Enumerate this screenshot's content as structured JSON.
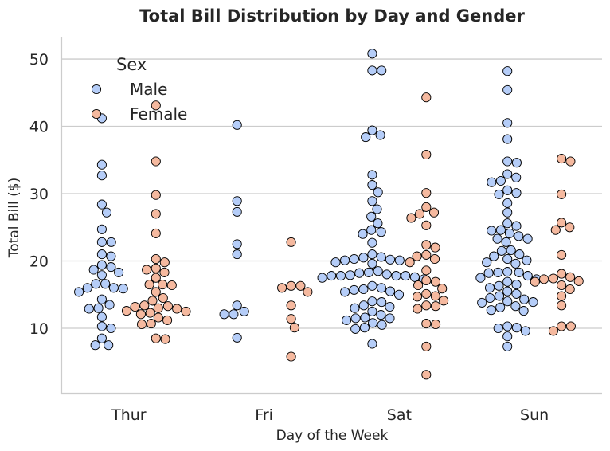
{
  "chart_data": {
    "type": "scatter",
    "subtype": "swarm",
    "title": "Total Bill Distribution by Day and Gender",
    "xlabel": "Day of the Week",
    "ylabel": "Total Bill ($)",
    "categories": [
      "Thur",
      "Fri",
      "Sat",
      "Sun"
    ],
    "yticks": [
      10,
      20,
      30,
      40,
      50
    ],
    "ylim": [
      0.3,
      53.2
    ],
    "grid": "horizontal",
    "legend": {
      "title": "Sex",
      "position": "top-left"
    },
    "series": [
      {
        "name": "Male",
        "color": "#b5cdf8",
        "values": {
          "Thur": [
            41.2,
            34.3,
            32.7,
            28.4,
            27.2,
            24.7,
            22.8,
            22.8,
            21.0,
            20.7,
            19.4,
            19.1,
            18.7,
            18.3,
            17.9,
            16.6,
            16.6,
            16.0,
            16.0,
            15.9,
            15.4,
            14.3,
            13.5,
            13.0,
            12.9,
            11.7,
            10.3,
            10.0,
            8.5,
            7.5,
            7.5
          ],
          "Fri": [
            40.2,
            28.9,
            27.3,
            22.5,
            21.0,
            13.4,
            12.5,
            12.1,
            12.1,
            8.6
          ],
          "Sat": [
            50.8,
            48.3,
            48.3,
            39.4,
            38.7,
            38.4,
            32.8,
            31.3,
            30.2,
            28.9,
            27.7,
            26.6,
            25.6,
            24.6,
            24.3,
            24.0,
            22.7,
            21.0,
            20.6,
            20.5,
            20.3,
            20.2,
            20.1,
            20.1,
            19.8,
            19.6,
            18.5,
            18.3,
            18.2,
            18.0,
            17.9,
            17.8,
            17.8,
            17.8,
            17.8,
            17.6,
            17.5,
            17.3,
            16.0,
            16.3,
            15.8,
            15.5,
            15.4,
            15.7,
            15.0,
            14.0,
            13.9,
            13.4,
            13.2,
            13.0,
            12.5,
            12.0,
            11.6,
            11.5,
            11.5,
            11.2,
            10.8,
            10.5,
            10.1,
            9.9,
            7.7
          ],
          "Sun": [
            48.2,
            45.4,
            40.5,
            38.1,
            34.8,
            34.6,
            32.9,
            32.4,
            31.9,
            31.7,
            30.5,
            30.1,
            29.9,
            28.6,
            27.2,
            25.6,
            25.2,
            24.6,
            24.5,
            24.1,
            23.7,
            23.3,
            23.3,
            22.8,
            21.6,
            21.5,
            21.0,
            20.7,
            20.3,
            20.1,
            19.8,
            19.6,
            18.4,
            18.3,
            18.3,
            18.2,
            17.8,
            17.5,
            17.3,
            16.9,
            16.5,
            16.3,
            16.0,
            15.5,
            15.1,
            14.8,
            14.5,
            14.3,
            14.0,
            13.9,
            13.8,
            13.3,
            13.1,
            12.7,
            12.6,
            10.3,
            10.1,
            10.0,
            9.6,
            8.8,
            7.3
          ]
        }
      },
      {
        "name": "Female",
        "color": "#f5b99f",
        "values": {
          "Thur": [
            43.1,
            34.8,
            29.8,
            27.0,
            24.1,
            20.3,
            19.8,
            18.9,
            18.7,
            18.3,
            17.5,
            16.5,
            16.5,
            16.4,
            15.4,
            14.5,
            14.1,
            13.4,
            13.3,
            13.2,
            13.0,
            12.9,
            12.6,
            12.5,
            12.3,
            12.1,
            11.6,
            11.2,
            10.7,
            10.6,
            8.5,
            8.4
          ],
          "Fri": [
            22.8,
            16.3,
            16.3,
            16.0,
            15.4,
            13.4,
            11.4,
            10.1,
            5.8
          ],
          "Sat": [
            44.3,
            35.8,
            30.1,
            28.0,
            27.2,
            27.0,
            26.4,
            25.3,
            22.4,
            22.0,
            20.9,
            20.7,
            20.3,
            19.8,
            18.6,
            17.1,
            16.9,
            16.4,
            15.9,
            15.1,
            14.8,
            14.7,
            14.1,
            13.4,
            13.3,
            12.9,
            10.7,
            10.6,
            7.3,
            3.1
          ],
          "Sun": [
            35.2,
            34.8,
            29.9,
            25.7,
            25.0,
            24.6,
            20.9,
            18.1,
            17.6,
            17.4,
            17.3,
            17.0,
            16.9,
            16.4,
            15.8,
            14.8,
            13.4,
            10.3,
            10.3,
            9.6
          ]
        }
      }
    ]
  }
}
